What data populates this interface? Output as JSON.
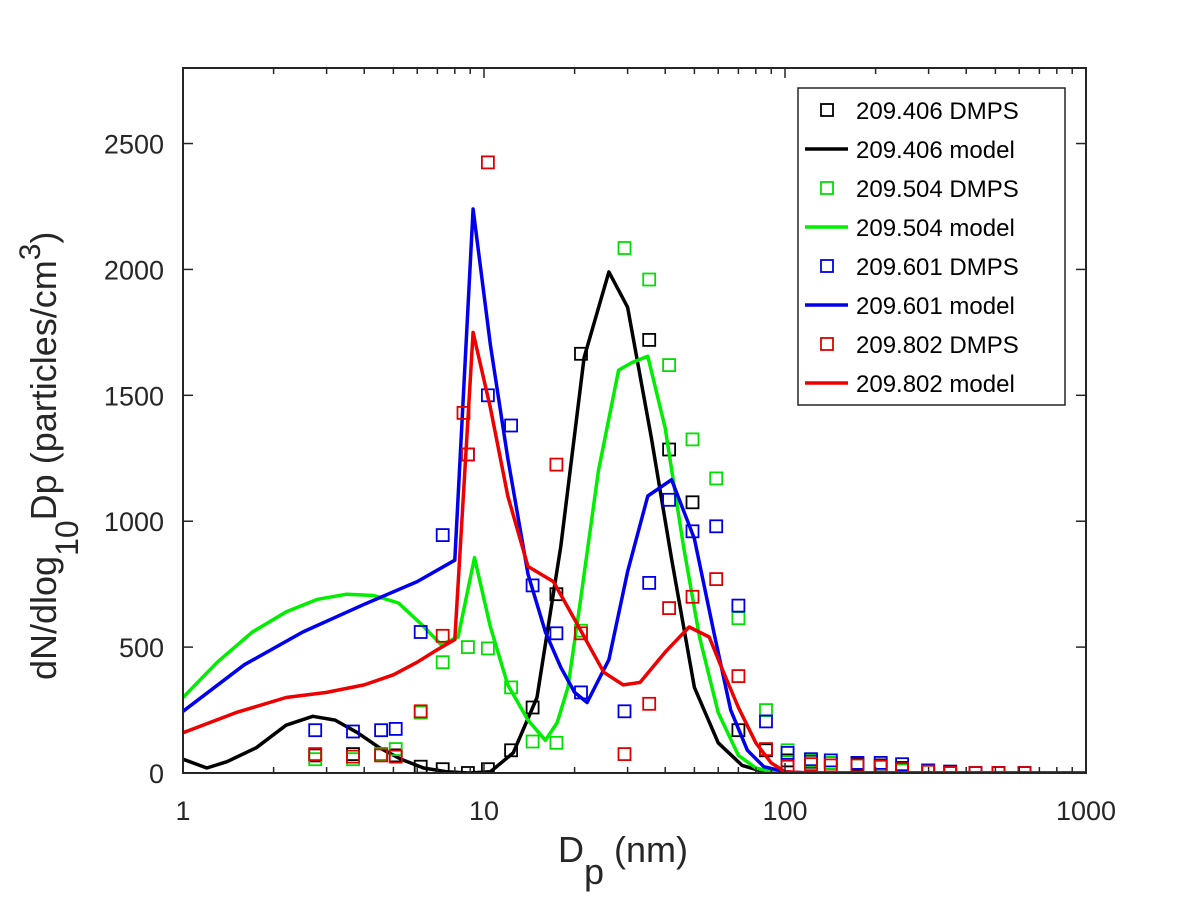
{
  "chart_data": {
    "type": "line",
    "x_scale": "log",
    "xlim": [
      1,
      1000
    ],
    "ylim": [
      0,
      2800
    ],
    "grid": false,
    "legend_position": "top-right",
    "xlabel": {
      "base": "D",
      "sub": "p",
      "rest": " (nm)"
    },
    "ylabel": {
      "a": "dN/dlog",
      "sub": "10",
      "b": "Dp (particles/cm",
      "sup": "3",
      "c": ")"
    },
    "x_ticks": [
      {
        "value": 1,
        "label": "1"
      },
      {
        "value": 10,
        "label": "10"
      },
      {
        "value": 100,
        "label": "100"
      },
      {
        "value": 1000,
        "label": "1000"
      }
    ],
    "y_ticks": [
      {
        "value": 0,
        "label": "0"
      },
      {
        "value": 500,
        "label": "500"
      },
      {
        "value": 1000,
        "label": "1000"
      },
      {
        "value": 1500,
        "label": "1500"
      },
      {
        "value": 2000,
        "label": "2000"
      },
      {
        "value": 2500,
        "label": "2500"
      }
    ],
    "series": [
      {
        "name": "209.406 DMPS",
        "kind": "markers",
        "color": "#000000",
        "x": [
          2.75,
          3.67,
          4.55,
          5.09,
          6.16,
          7.29,
          8.84,
          10.3,
          12.3,
          14.5,
          17.4,
          21.0,
          35.4,
          41.2,
          49.3,
          70.0,
          86.5,
          102,
          122,
          142,
          174,
          208,
          245,
          299,
          354,
          429,
          512,
          624
        ],
        "y": [
          70,
          75,
          75,
          70,
          25,
          15,
          0,
          15,
          90,
          260,
          710,
          1665,
          1720,
          1285,
          1075,
          170,
          90,
          50,
          45,
          40,
          35,
          30,
          20,
          10,
          5,
          0,
          0,
          0
        ]
      },
      {
        "name": "209.406 model",
        "kind": "line",
        "color": "#000000",
        "x": [
          1,
          1.2,
          1.4,
          1.75,
          2.2,
          2.7,
          3.2,
          3.8,
          4.5,
          5.3,
          6.3,
          7.5,
          8.9,
          10.5,
          12.5,
          15,
          18,
          21.5,
          26,
          30,
          36,
          42,
          50,
          60,
          72,
          85,
          100,
          120,
          150,
          200,
          300,
          500,
          1000
        ],
        "y": [
          55,
          20,
          45,
          100,
          190,
          225,
          210,
          160,
          100,
          55,
          20,
          5,
          0,
          5,
          80,
          300,
          900,
          1650,
          1990,
          1850,
          1330,
          850,
          340,
          120,
          30,
          5,
          0,
          0,
          0,
          0,
          0,
          0,
          0
        ]
      },
      {
        "name": "209.504 DMPS",
        "kind": "markers",
        "color": "#00e000",
        "x": [
          2.75,
          3.67,
          4.55,
          5.09,
          6.16,
          7.29,
          8.84,
          10.3,
          12.3,
          14.5,
          17.4,
          21.0,
          29.3,
          35.4,
          41.2,
          49.3,
          59.1,
          70.0,
          86.5,
          102,
          122,
          142,
          174,
          208,
          245,
          299,
          354,
          429,
          512,
          624
        ],
        "y": [
          55,
          55,
          75,
          95,
          240,
          440,
          500,
          495,
          340,
          125,
          120,
          565,
          2085,
          1960,
          1620,
          1325,
          1170,
          615,
          250,
          90,
          50,
          40,
          30,
          25,
          10,
          5,
          0,
          0,
          0,
          0
        ]
      },
      {
        "name": "209.504 model",
        "kind": "line",
        "color": "#00ee00",
        "x": [
          1,
          1.3,
          1.7,
          2.2,
          2.8,
          3.5,
          4.3,
          5.2,
          6.2,
          7.2,
          8.2,
          9.3,
          10.5,
          12,
          14,
          16,
          17.5,
          19,
          21,
          24,
          28,
          31,
          35,
          40,
          46,
          52,
          60,
          70,
          80,
          90,
          100,
          120,
          150,
          200,
          300,
          1000
        ],
        "y": [
          300,
          440,
          560,
          640,
          690,
          710,
          705,
          675,
          590,
          510,
          540,
          855,
          580,
          350,
          210,
          130,
          200,
          340,
          700,
          1200,
          1600,
          1630,
          1655,
          1370,
          900,
          540,
          240,
          70,
          20,
          5,
          0,
          0,
          0,
          0,
          0,
          0
        ]
      },
      {
        "name": "209.601 DMPS",
        "kind": "markers",
        "color": "#0000e6",
        "x": [
          2.75,
          3.67,
          4.55,
          5.09,
          6.16,
          7.29,
          8.84,
          10.3,
          12.3,
          14.5,
          17.4,
          21.0,
          29.3,
          35.4,
          41.2,
          49.3,
          59.1,
          70.0,
          86.5,
          102,
          122,
          142,
          174,
          208,
          245,
          299,
          354,
          429,
          512,
          624
        ],
        "y": [
          170,
          165,
          170,
          175,
          560,
          945,
          1265,
          1500,
          1380,
          745,
          555,
          320,
          245,
          755,
          1085,
          960,
          980,
          665,
          205,
          80,
          55,
          50,
          40,
          40,
          35,
          10,
          5,
          0,
          0,
          0
        ]
      },
      {
        "name": "209.601 model",
        "kind": "line",
        "color": "#0000ee",
        "x": [
          1,
          1.6,
          2.5,
          4,
          6,
          8,
          9.2,
          10.5,
          12,
          14,
          16,
          18,
          20,
          22,
          26,
          30,
          35,
          42,
          50,
          58,
          66,
          75,
          85,
          100,
          120,
          150,
          200,
          300,
          1000
        ],
        "y": [
          245,
          430,
          560,
          670,
          760,
          845,
          2240,
          1700,
          1250,
          790,
          560,
          420,
          320,
          280,
          450,
          800,
          1100,
          1165,
          930,
          560,
          250,
          90,
          25,
          5,
          0,
          0,
          0,
          0,
          0
        ]
      },
      {
        "name": "209.802 DMPS",
        "kind": "markers",
        "color": "#e00000",
        "x": [
          2.75,
          3.67,
          4.55,
          5.09,
          6.16,
          7.29,
          8.55,
          8.84,
          10.3,
          17.4,
          21.0,
          29.3,
          35.4,
          41.2,
          49.3,
          59.1,
          70.0,
          86.5,
          102,
          122,
          142,
          174,
          208,
          245,
          299,
          354,
          429,
          512,
          624
        ],
        "y": [
          75,
          65,
          70,
          65,
          245,
          545,
          1430,
          1265,
          2425,
          1225,
          555,
          75,
          275,
          655,
          700,
          770,
          385,
          95,
          25,
          35,
          30,
          30,
          25,
          15,
          5,
          0,
          0,
          0,
          0
        ]
      },
      {
        "name": "209.802 model",
        "kind": "line",
        "color": "#ee0000",
        "x": [
          1,
          1.5,
          2.2,
          3,
          4,
          5,
          6,
          7,
          8,
          9.2,
          10.5,
          12,
          14,
          17,
          20,
          25,
          29,
          33,
          40,
          48,
          56,
          62,
          70,
          80,
          90,
          100,
          120,
          150,
          200,
          300,
          1000
        ],
        "y": [
          160,
          240,
          300,
          320,
          350,
          390,
          440,
          490,
          530,
          1750,
          1450,
          1100,
          820,
          760,
          610,
          400,
          350,
          360,
          480,
          580,
          540,
          410,
          260,
          120,
          40,
          5,
          0,
          0,
          0,
          0,
          0
        ]
      }
    ]
  }
}
